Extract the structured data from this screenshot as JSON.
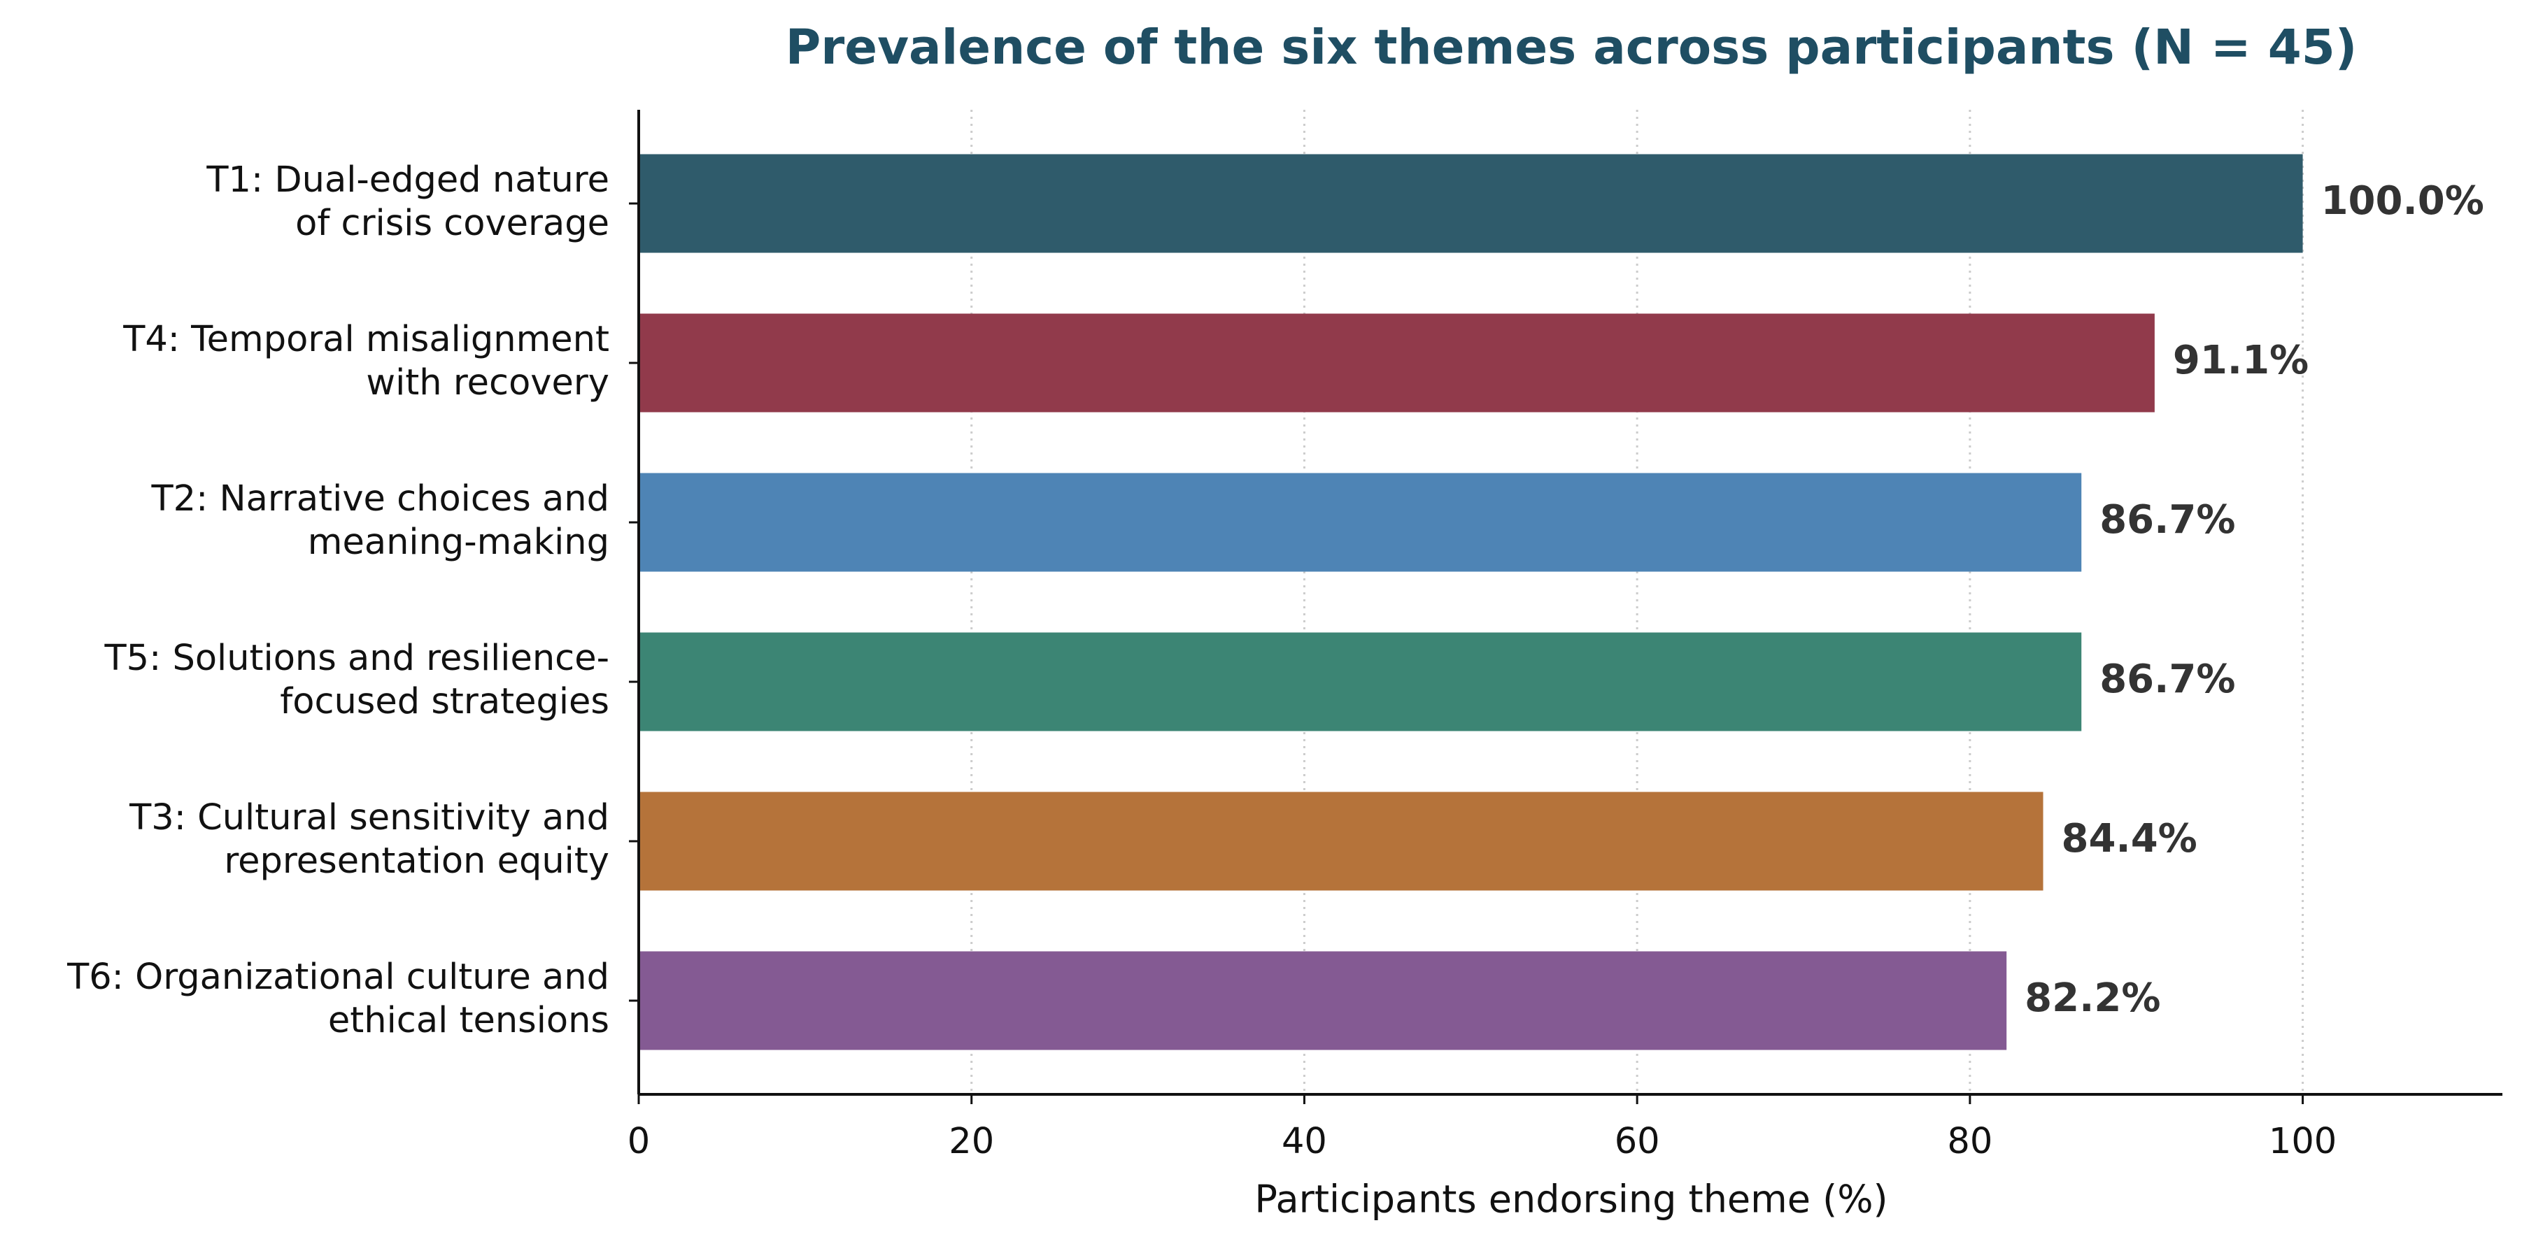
{
  "chart_data": {
    "type": "bar",
    "orientation": "horizontal",
    "title": "Prevalence of the six themes across participants (N = 45)",
    "x_label": "Participants endorsing theme (%)",
    "categories": [
      "T1: Dual-edged nature\nof crisis coverage",
      "T4: Temporal misalignment\nwith recovery",
      "T2: Narrative choices and\nmeaning-making",
      "T5: Solutions and resilience-\nfocused strategies",
      "T3: Cultural sensitivity and\nrepresentation equity",
      "T6: Organizational culture and\nethical tensions"
    ],
    "values": [
      100.0,
      91.1,
      86.7,
      86.7,
      84.4,
      82.2
    ],
    "value_labels": [
      "100.0%",
      "91.1%",
      "86.7%",
      "86.7%",
      "84.4%",
      "82.2%"
    ],
    "colors": [
      "#2f5b6b",
      "#913a4b",
      "#4e84b5",
      "#3c8574",
      "#b5733a",
      "#845a93"
    ],
    "xlim": [
      0,
      112
    ],
    "xticks": [
      0,
      20,
      40,
      60,
      80,
      100
    ],
    "grid": true
  }
}
